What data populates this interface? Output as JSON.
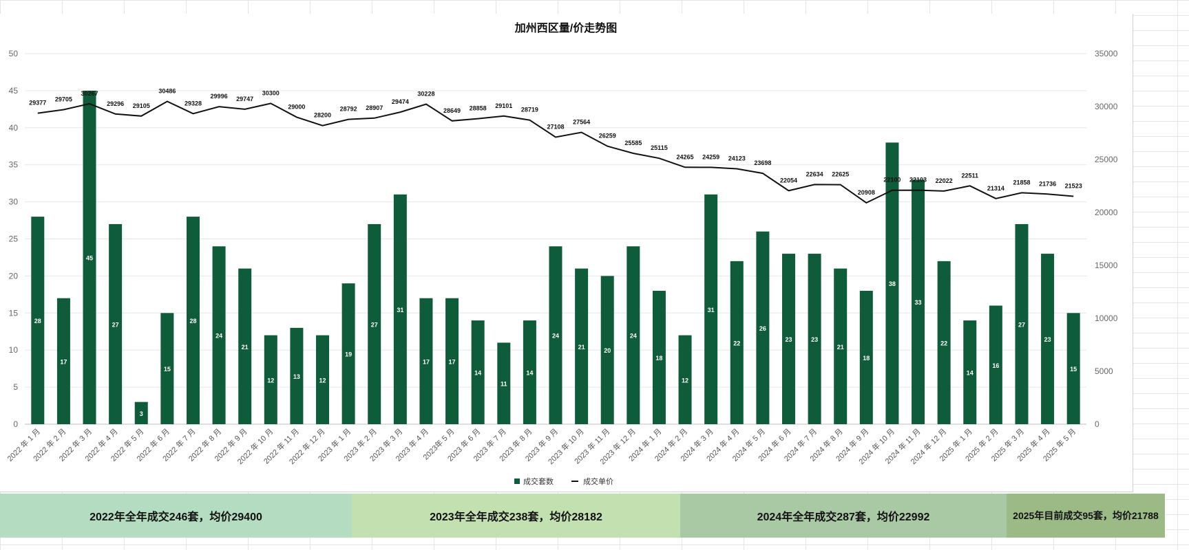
{
  "chart_data": {
    "type": "bar+line",
    "title": "加州西区量/价走势图",
    "categories": [
      "2022 年 1 月",
      "2022 年 2 月",
      "2022 年 3 月",
      "2022 年 4 月",
      "2022 年 5 月",
      "2022 年 6 月",
      "2022 年 7 月",
      "2022 年 8 月",
      "2022 年 9 月",
      "2022 年 10 月",
      "2022 年 11 月",
      "2022 年 12 月",
      "2023 年 1 月",
      "2023 年 2 月",
      "2023 年 3 月",
      "2023 年 4 月",
      "2023年 5 月",
      "2023 年 6 月",
      "2023 年 7 月",
      "2023 年 8 月",
      "2023 年 9 月",
      "2023 年 10 月",
      "2023 年 11 月",
      "2023 年 12 月",
      "2024 年 1 月",
      "2024 年 2 月",
      "2024 年 3 月",
      "2024 年 4 月",
      "2024 年 5 月",
      "2024 年 6 月",
      "2024 年 7 月",
      "2024 年 8 月",
      "2024 年 9 月",
      "2024 年 10 月",
      "2024 年 11 月",
      "2024 年 12 月",
      "2025 年 1 月",
      "2025 年 2 月",
      "2025 年 3 月",
      "2025 年 4 月",
      "2025 年 5 月"
    ],
    "series": [
      {
        "name": "成交套数",
        "type": "bar",
        "axis": "left",
        "color": "#0f5c3a",
        "values": [
          28,
          17,
          45,
          27,
          3,
          15,
          28,
          24,
          21,
          12,
          13,
          12,
          19,
          27,
          31,
          17,
          17,
          14,
          11,
          14,
          24,
          21,
          20,
          24,
          18,
          12,
          31,
          22,
          26,
          23,
          23,
          21,
          18,
          38,
          33,
          22,
          14,
          16,
          27,
          23,
          15
        ]
      },
      {
        "name": "成交单价",
        "type": "line",
        "axis": "right",
        "color": "#111111",
        "values": [
          29377,
          29705,
          30267,
          29296,
          29105,
          30486,
          29328,
          29996,
          29747,
          30300,
          29000,
          28200,
          28792,
          28907,
          29474,
          30228,
          28649,
          28858,
          29101,
          28719,
          27108,
          27564,
          26259,
          25585,
          25115,
          24265,
          24259,
          24123,
          23698,
          22054,
          22634,
          22625,
          20908,
          22100,
          22103,
          22022,
          22511,
          21314,
          21858,
          21736,
          21523
        ]
      }
    ],
    "ylim_left": [
      0,
      50
    ],
    "yticks_left": [
      "0",
      "5",
      "10",
      "15",
      "20",
      "25",
      "30",
      "35",
      "40",
      "45",
      "50"
    ],
    "ylim_right": [
      0,
      35000
    ],
    "yticks_right": [
      "0",
      "5000",
      "10000",
      "15000",
      "20000",
      "25000",
      "30000",
      "35000"
    ],
    "grid": true,
    "legend_position": "bottom-center"
  },
  "summary": [
    {
      "text": "2022年全年成交246套，均价29400",
      "color": "#b3dcc0"
    },
    {
      "text": "2023年全年成交238套，均价28182",
      "color": "#c2e0b0"
    },
    {
      "text": "2024年全年成交287套，均价22992",
      "color": "#a9c9a4"
    },
    {
      "text": "2025年目前成交95套，均价21788",
      "color": "#9cba86"
    }
  ]
}
